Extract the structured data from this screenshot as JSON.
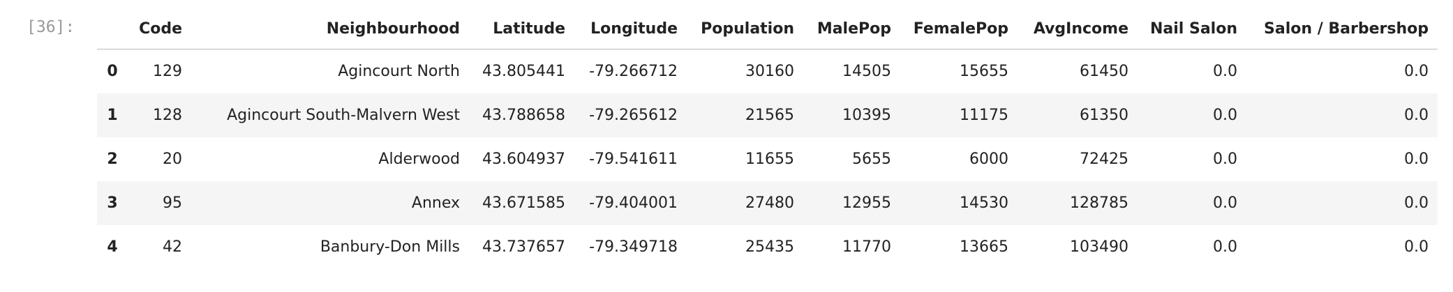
{
  "prompt": "[36]:",
  "table": {
    "columns": [
      "",
      "Code",
      "Neighbourhood",
      "Latitude",
      "Longitude",
      "Population",
      "MalePop",
      "FemalePop",
      "AvgIncome",
      "Nail Salon",
      "Salon / Barbershop"
    ],
    "rows": [
      [
        "0",
        "129",
        "Agincourt North",
        "43.805441",
        "-79.266712",
        "30160",
        "14505",
        "15655",
        "61450",
        "0.0",
        "0.0"
      ],
      [
        "1",
        "128",
        "Agincourt South-Malvern West",
        "43.788658",
        "-79.265612",
        "21565",
        "10395",
        "11175",
        "61350",
        "0.0",
        "0.0"
      ],
      [
        "2",
        "20",
        "Alderwood",
        "43.604937",
        "-79.541611",
        "11655",
        "5655",
        "6000",
        "72425",
        "0.0",
        "0.0"
      ],
      [
        "3",
        "95",
        "Annex",
        "43.671585",
        "-79.404001",
        "27480",
        "12955",
        "14530",
        "128785",
        "0.0",
        "0.0"
      ],
      [
        "4",
        "42",
        "Banbury-Don Mills",
        "43.737657",
        "-79.349718",
        "25435",
        "11770",
        "13665",
        "103490",
        "0.0",
        "0.0"
      ]
    ]
  }
}
